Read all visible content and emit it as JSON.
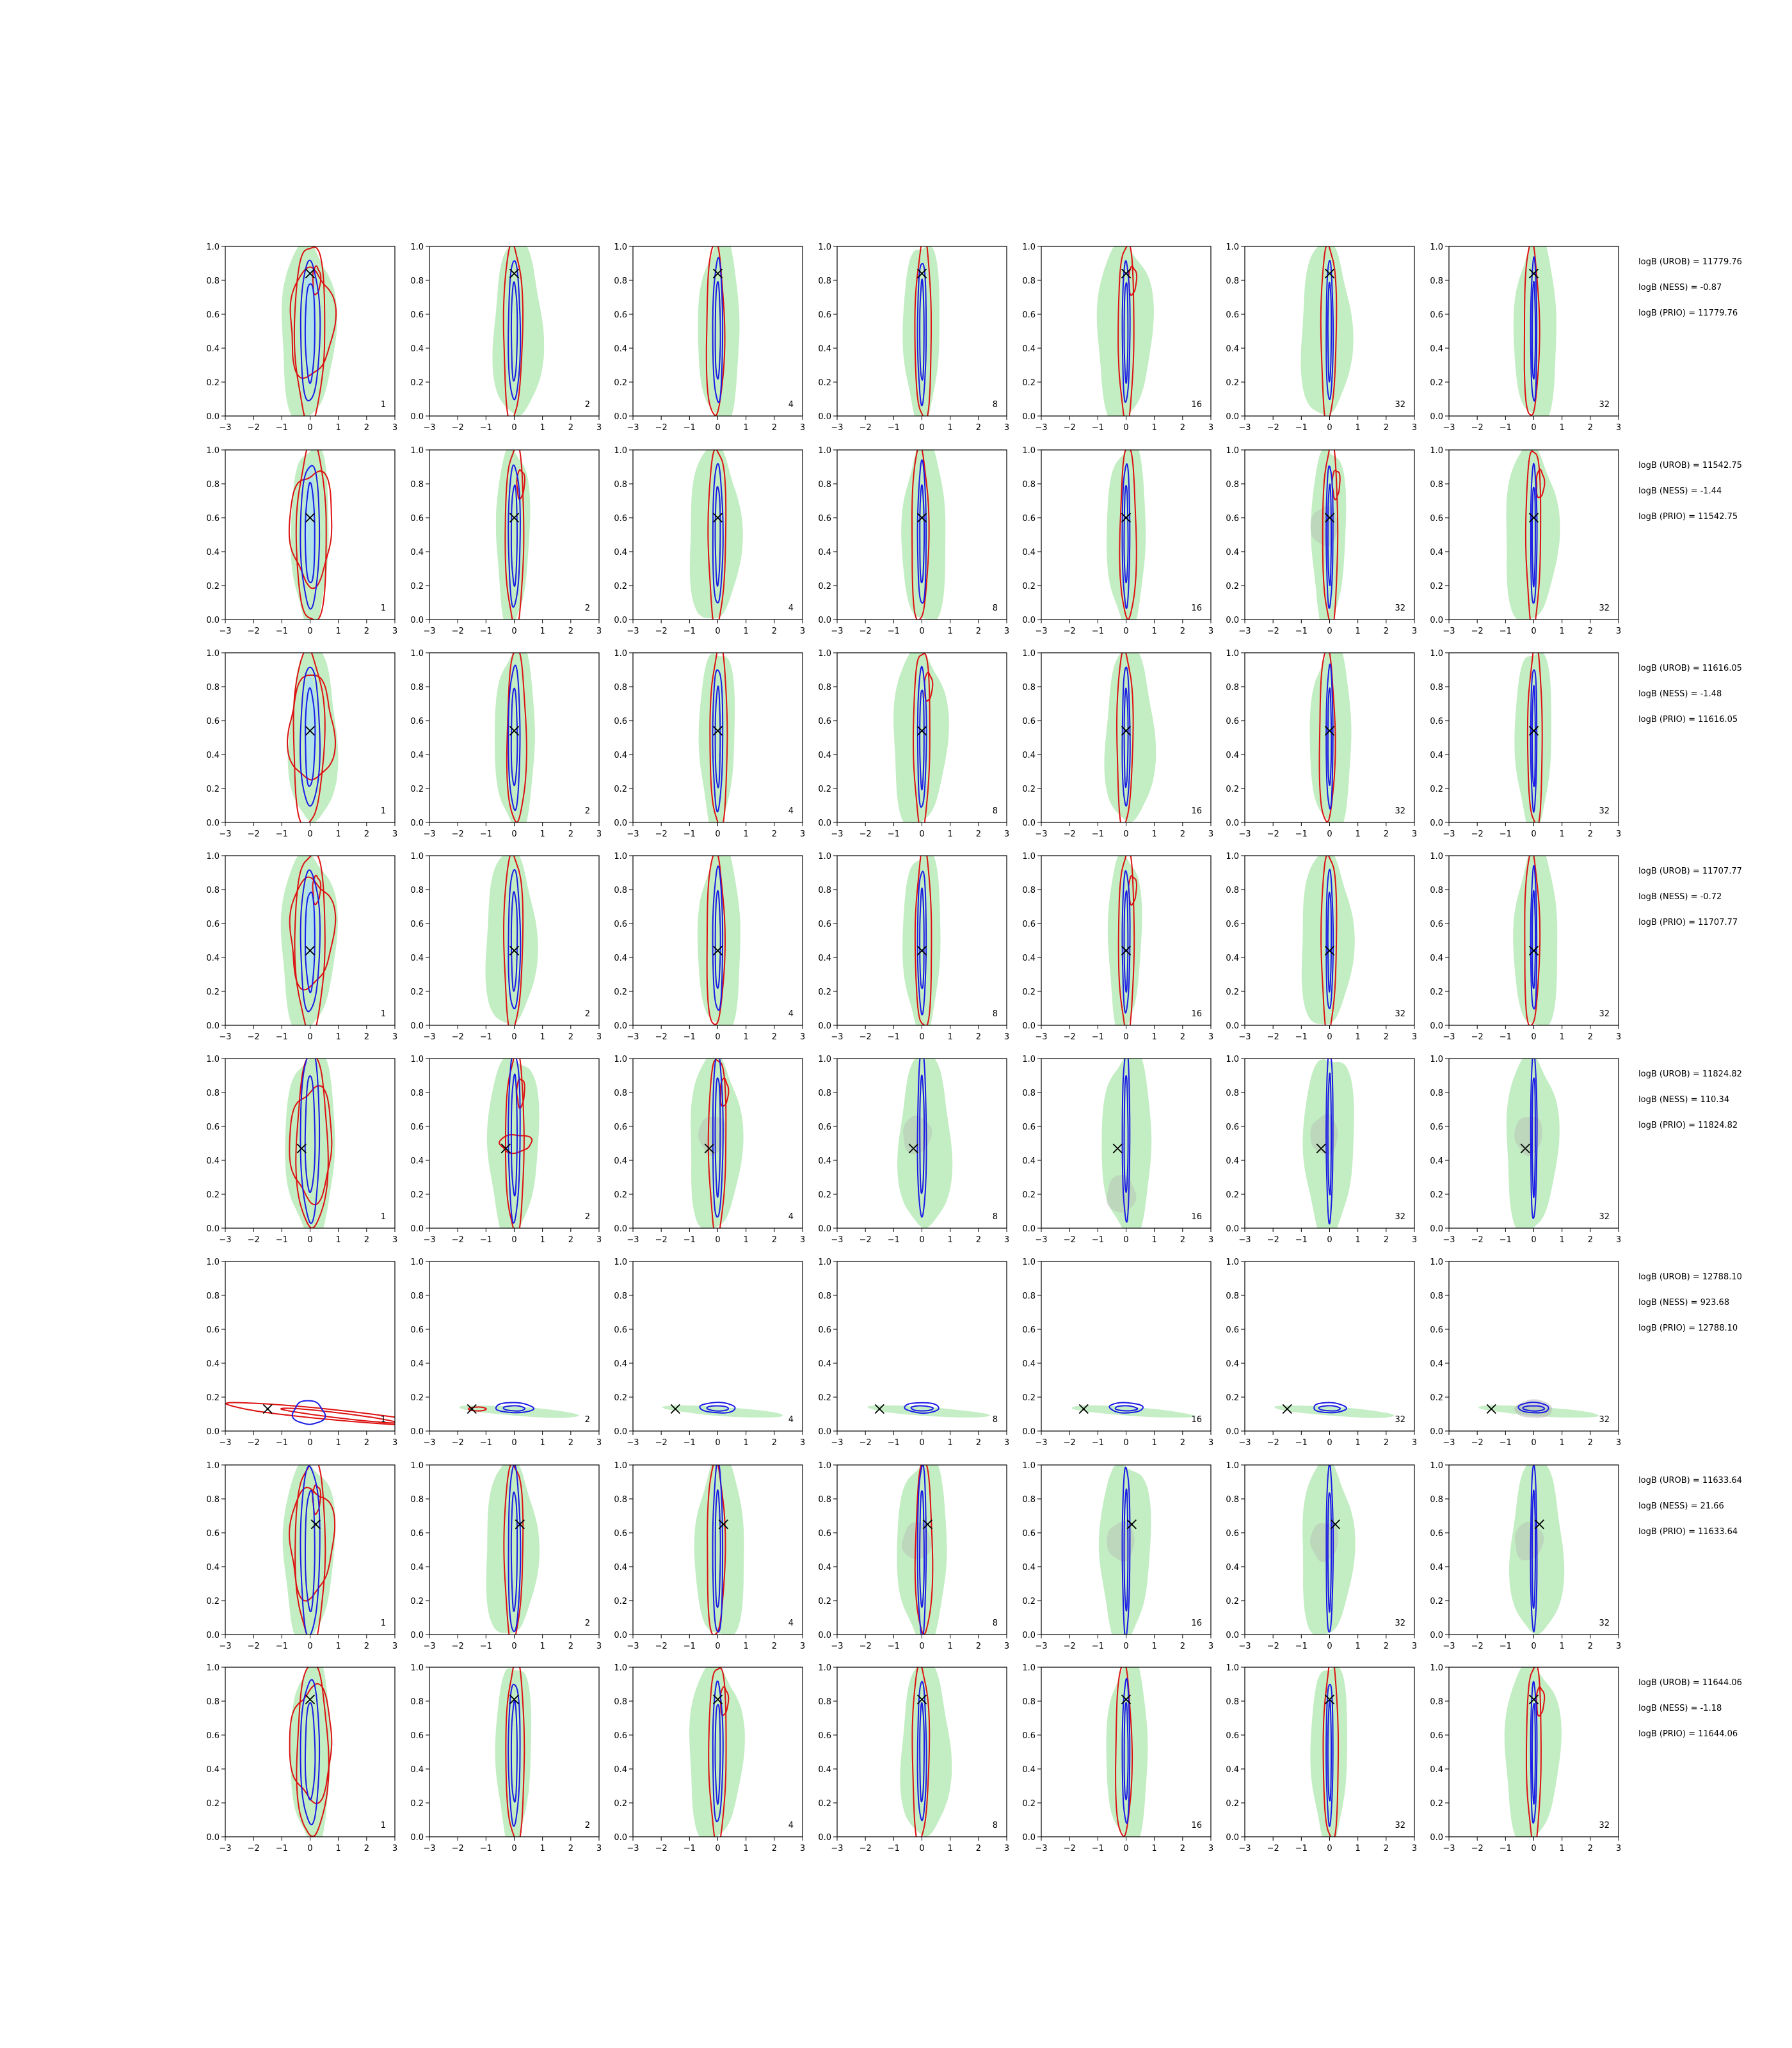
{
  "chart_data": {
    "type": "contour",
    "rows": 8,
    "cols": 7,
    "xlim": [
      -3,
      3
    ],
    "ylim": [
      0.0,
      1.0
    ],
    "x_ticks": [
      "−3",
      "−2",
      "−1",
      "0",
      "1",
      "2",
      "3"
    ],
    "y_ticks": [
      "0.0",
      "0.2",
      "0.4",
      "0.6",
      "0.8",
      "1.0"
    ],
    "panel_labels": [
      "1",
      "2",
      "4",
      "8",
      "16",
      "32",
      "32"
    ],
    "colors": {
      "green_fill": "#b8eab8",
      "grey_fill": "#b0b0b0",
      "light_blue_fill": "#aee0f0",
      "red_contour": "#dd1111",
      "blue_contour": "#1a1ae6",
      "marker": "#000000"
    },
    "rows_data": [
      {
        "truth": [
          0,
          0.84
        ],
        "ann": [
          "logB (UROB) = 11779.76",
          "logB (NESS) = -0.87",
          "logB (PRIO) = 11779.76"
        ]
      },
      {
        "truth": [
          0,
          0.6
        ],
        "ann": [
          "logB (UROB) = 11542.75",
          "logB (NESS) = -1.44",
          "logB (PRIO) = 11542.75"
        ]
      },
      {
        "truth": [
          0,
          0.54
        ],
        "ann": [
          "logB (UROB) = 11616.05",
          "logB (NESS) = -1.48",
          "logB (PRIO) = 11616.05"
        ]
      },
      {
        "truth": [
          0,
          0.44
        ],
        "ann": [
          "logB (UROB) = 11707.77",
          "logB (NESS) = -0.72",
          "logB (PRIO) = 11707.77"
        ]
      },
      {
        "truth": [
          -0.3,
          0.47
        ],
        "ann": [
          "logB (UROB) = 11824.82",
          "logB (NESS) = 110.34",
          "logB (PRIO) = 11824.82"
        ]
      },
      {
        "truth": [
          -1.5,
          0.13
        ],
        "ann": [
          "logB (UROB) = 12788.10",
          "logB (NESS) = 923.68",
          "logB (PRIO) = 12788.10"
        ]
      },
      {
        "truth": [
          0.2,
          0.65
        ],
        "ann": [
          "logB (UROB) = 11633.64",
          "logB (NESS) = 21.66",
          "logB (PRIO) = 11633.64"
        ]
      },
      {
        "truth": [
          0,
          0.81
        ],
        "ann": [
          "logB (UROB) = 11644.06",
          "logB (NESS) = -1.18",
          "logB (PRIO) = 11644.06"
        ]
      }
    ]
  }
}
